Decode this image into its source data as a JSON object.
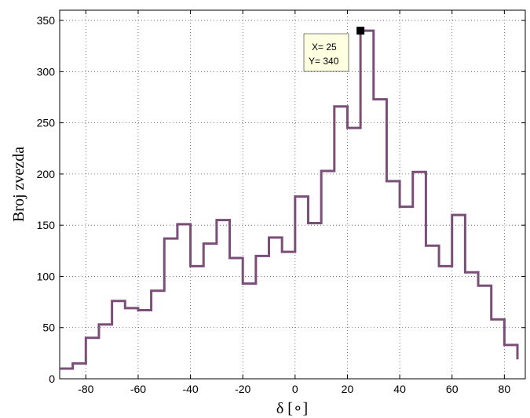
{
  "chart_data": {
    "type": "line",
    "style": "stairs",
    "xlabel": "δ [∘]",
    "ylabel": "Broj zvezda",
    "xlim": [
      -90,
      88
    ],
    "ylim": [
      0,
      360
    ],
    "grid": true,
    "line_color": "#7a4e78",
    "x_ticks": [
      -80,
      -60,
      -40,
      -20,
      0,
      20,
      40,
      60,
      80
    ],
    "y_ticks": [
      0,
      50,
      100,
      150,
      200,
      250,
      300,
      350
    ],
    "series": [
      {
        "x": [
          -90,
          -85,
          -80,
          -75,
          -70,
          -65,
          -60,
          -55,
          -50,
          -45,
          -40,
          -35,
          -30,
          -25,
          -20,
          -15,
          -10,
          -5,
          0,
          5,
          10,
          15,
          20,
          25,
          30,
          35,
          40,
          45,
          50,
          55,
          60,
          65,
          70,
          75,
          80,
          85
        ],
        "y": [
          10,
          15,
          40,
          53,
          76,
          69,
          67,
          86,
          137,
          151,
          110,
          132,
          155,
          118,
          93,
          120,
          138,
          124,
          178,
          152,
          203,
          266,
          245,
          340,
          273,
          193,
          168,
          202,
          130,
          110,
          160,
          104,
          91,
          58,
          33,
          19
        ]
      }
    ],
    "datatip": {
      "x": 25,
      "y": 340,
      "x_text": "X= 25",
      "y_text": "Y= 340"
    }
  }
}
